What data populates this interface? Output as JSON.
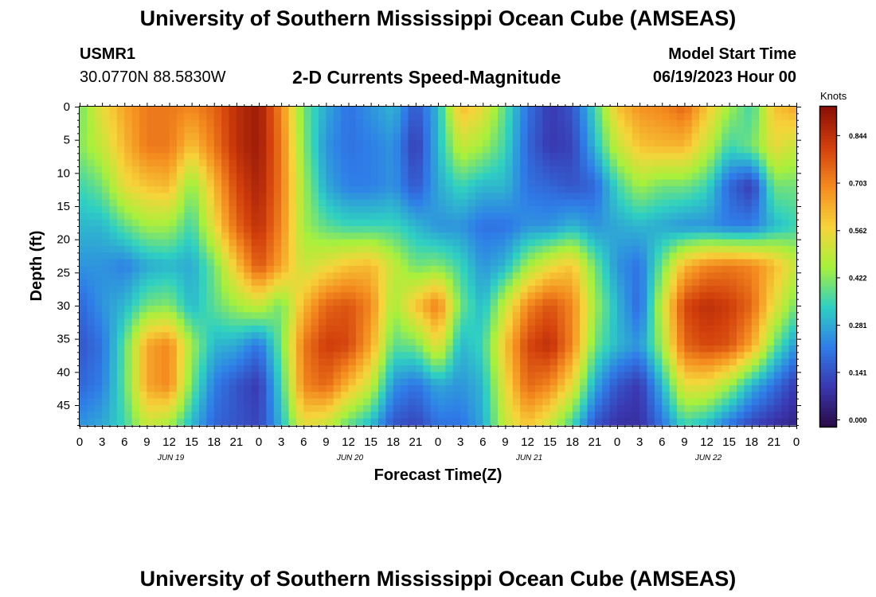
{
  "header": {
    "title": "University of Southern Mississippi Ocean Cube (AMSEAS)",
    "station": "USMR1",
    "coords": "30.0770N  88.5830W",
    "subtitle": "2-D Currents Speed-Magnitude",
    "start_label": "Model Start Time",
    "start_value": "06/19/2023 Hour 00"
  },
  "footer": {
    "title": "University of Southern Mississippi Ocean Cube (AMSEAS)"
  },
  "colors": {
    "background": "#ffffff",
    "stops": [
      "#2a0a45",
      "#3a37b0",
      "#2f7de8",
      "#2fd0c2",
      "#a8f03c",
      "#f6d43a",
      "#f48b1f",
      "#d23f0c",
      "#8a0f07"
    ]
  },
  "chart_data": {
    "type": "heatmap",
    "title": "2-D Currents Speed-Magnitude",
    "xlabel": "Forecast Time(Z)",
    "ylabel": "Depth (ft)",
    "colorbar_label": "Knots",
    "colorbar_ticks": [
      "0.844",
      "0.703",
      "0.562",
      "0.422",
      "0.281",
      "0.141",
      "0.000"
    ],
    "colorbar_values": [
      0.844,
      0.703,
      0.562,
      0.422,
      0.281,
      0.141,
      0.0
    ],
    "crange": [
      -0.02,
      0.93
    ],
    "x_hours_range": [
      0,
      96
    ],
    "x_tick_labels": [
      "0",
      "3",
      "6",
      "9",
      "12",
      "15",
      "18",
      "21",
      "0",
      "3",
      "6",
      "9",
      "12",
      "15",
      "18",
      "21",
      "0",
      "3",
      "6",
      "9",
      "12",
      "15",
      "18",
      "21",
      "0",
      "3",
      "6",
      "9",
      "12",
      "15",
      "18",
      "21",
      "0"
    ],
    "date_labels": [
      {
        "label": "JUN 19",
        "hour": 12
      },
      {
        "label": "JUN 20",
        "hour": 36
      },
      {
        "label": "JUN 21",
        "hour": 60
      },
      {
        "label": "JUN 22",
        "hour": 84
      }
    ],
    "ylim": [
      0,
      48
    ],
    "y_ticks": [
      0,
      5,
      10,
      15,
      20,
      25,
      30,
      35,
      40,
      45
    ],
    "y_tick_labels": [
      "0",
      "5",
      "10",
      "15",
      "20",
      "25",
      "30",
      "35",
      "40",
      "45"
    ],
    "depth_levels": [
      0,
      6,
      12,
      18,
      24,
      30,
      36,
      42,
      48
    ],
    "hours": [
      0,
      3,
      6,
      9,
      12,
      15,
      18,
      21,
      24,
      27,
      30,
      33,
      36,
      39,
      42,
      45,
      48,
      51,
      54,
      57,
      60,
      63,
      66,
      69,
      72,
      75,
      78,
      81,
      84,
      87,
      90,
      93,
      96
    ],
    "speed": [
      [
        0.4,
        0.55,
        0.65,
        0.72,
        0.72,
        0.7,
        0.75,
        0.85,
        0.9,
        0.7,
        0.4,
        0.28,
        0.2,
        0.25,
        0.3,
        0.15,
        0.3,
        0.62,
        0.55,
        0.38,
        0.2,
        0.1,
        0.15,
        0.35,
        0.6,
        0.68,
        0.7,
        0.75,
        0.6,
        0.45,
        0.35,
        0.6,
        0.65
      ],
      [
        0.42,
        0.5,
        0.62,
        0.72,
        0.72,
        0.6,
        0.72,
        0.85,
        0.9,
        0.72,
        0.42,
        0.25,
        0.2,
        0.22,
        0.25,
        0.1,
        0.3,
        0.5,
        0.45,
        0.35,
        0.18,
        0.1,
        0.12,
        0.3,
        0.5,
        0.6,
        0.62,
        0.62,
        0.5,
        0.35,
        0.4,
        0.55,
        0.5
      ],
      [
        0.35,
        0.4,
        0.55,
        0.6,
        0.62,
        0.42,
        0.62,
        0.8,
        0.88,
        0.72,
        0.45,
        0.28,
        0.22,
        0.22,
        0.25,
        0.15,
        0.28,
        0.35,
        0.3,
        0.3,
        0.2,
        0.18,
        0.15,
        0.18,
        0.35,
        0.45,
        0.4,
        0.4,
        0.35,
        0.18,
        0.1,
        0.4,
        0.4
      ],
      [
        0.3,
        0.3,
        0.38,
        0.45,
        0.45,
        0.35,
        0.55,
        0.75,
        0.85,
        0.7,
        0.45,
        0.38,
        0.35,
        0.35,
        0.35,
        0.3,
        0.25,
        0.25,
        0.2,
        0.2,
        0.25,
        0.25,
        0.3,
        0.25,
        0.28,
        0.3,
        0.28,
        0.25,
        0.25,
        0.22,
        0.22,
        0.3,
        0.35
      ],
      [
        0.25,
        0.25,
        0.22,
        0.28,
        0.3,
        0.28,
        0.4,
        0.6,
        0.78,
        0.65,
        0.5,
        0.55,
        0.6,
        0.62,
        0.5,
        0.4,
        0.42,
        0.35,
        0.25,
        0.3,
        0.45,
        0.55,
        0.6,
        0.4,
        0.25,
        0.2,
        0.4,
        0.62,
        0.7,
        0.72,
        0.7,
        0.62,
        0.5
      ],
      [
        0.18,
        0.25,
        0.3,
        0.4,
        0.42,
        0.3,
        0.38,
        0.45,
        0.5,
        0.4,
        0.62,
        0.75,
        0.78,
        0.7,
        0.45,
        0.6,
        0.72,
        0.4,
        0.3,
        0.5,
        0.7,
        0.78,
        0.7,
        0.45,
        0.3,
        0.18,
        0.5,
        0.8,
        0.85,
        0.82,
        0.75,
        0.55,
        0.4
      ],
      [
        0.15,
        0.2,
        0.38,
        0.65,
        0.7,
        0.45,
        0.3,
        0.28,
        0.2,
        0.4,
        0.72,
        0.82,
        0.8,
        0.65,
        0.38,
        0.4,
        0.55,
        0.3,
        0.35,
        0.6,
        0.8,
        0.85,
        0.7,
        0.4,
        0.3,
        0.25,
        0.45,
        0.75,
        0.8,
        0.78,
        0.65,
        0.4,
        0.25
      ],
      [
        0.18,
        0.22,
        0.38,
        0.65,
        0.7,
        0.4,
        0.22,
        0.15,
        0.1,
        0.35,
        0.7,
        0.75,
        0.62,
        0.5,
        0.25,
        0.2,
        0.28,
        0.25,
        0.3,
        0.55,
        0.75,
        0.7,
        0.55,
        0.28,
        0.15,
        0.1,
        0.3,
        0.55,
        0.55,
        0.45,
        0.3,
        0.2,
        0.1
      ],
      [
        0.25,
        0.28,
        0.35,
        0.5,
        0.45,
        0.3,
        0.18,
        0.15,
        0.12,
        0.3,
        0.55,
        0.5,
        0.38,
        0.3,
        0.15,
        0.12,
        0.2,
        0.2,
        0.28,
        0.5,
        0.6,
        0.5,
        0.35,
        0.15,
        0.08,
        0.08,
        0.2,
        0.35,
        0.3,
        0.2,
        0.12,
        0.08,
        0.05
      ]
    ]
  }
}
